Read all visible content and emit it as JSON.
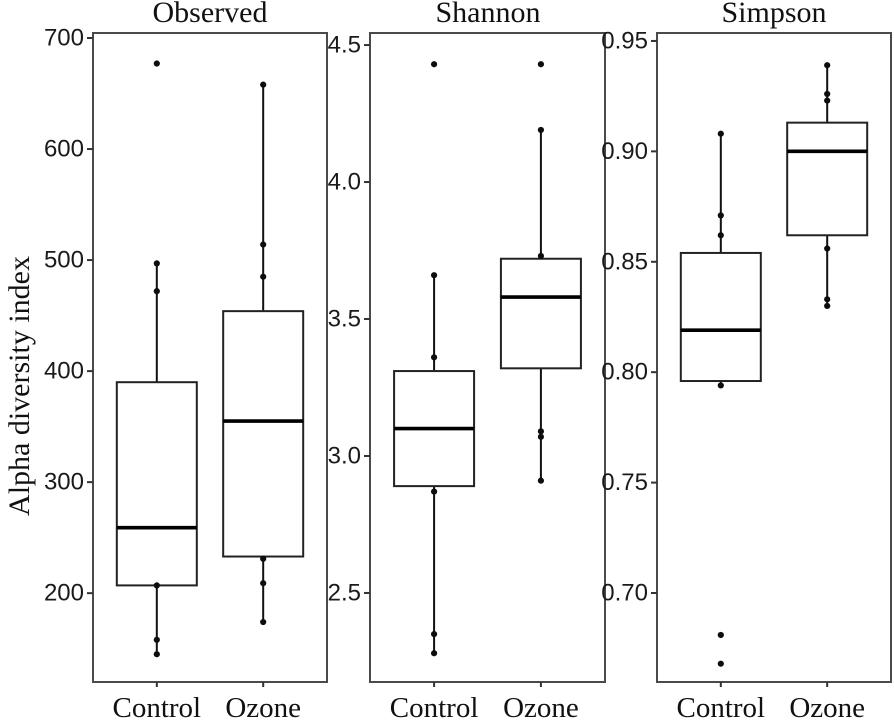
{
  "figure_title": "",
  "chart_data": {
    "type": "boxplot",
    "ylabel": "Alpha diversity index",
    "categories": [
      "Control",
      "Ozone"
    ],
    "colors": {
      "panel_border": "#4a4a4a",
      "box_border": "#222222",
      "median_line": "#000000",
      "whisker": "#111111",
      "point": "#0d0d0d",
      "text": "#111111",
      "background": "#ffffff"
    },
    "panels": [
      {
        "title": "Observed",
        "ylim": [
          120,
          704.5
        ],
        "yticks": [
          200,
          300,
          400,
          500,
          600,
          700
        ],
        "ytick_labels": [
          "200",
          "300",
          "400",
          "500",
          "600",
          "700"
        ],
        "groups": [
          {
            "category": "Control",
            "whisker_low": 145,
            "q1": 207,
            "median": 259,
            "q3": 390,
            "whisker_high": 497,
            "outliers": [
              677
            ],
            "points": [
              145,
              158,
              207,
              472,
              497,
              677
            ]
          },
          {
            "category": "Ozone",
            "whisker_low": 174,
            "q1": 233,
            "median": 355,
            "q3": 454,
            "whisker_high": 658,
            "outliers": [],
            "points": [
              174,
              209,
              231,
              485,
              514,
              658
            ]
          }
        ]
      },
      {
        "title": "Shannon",
        "ylim": [
          2.175,
          4.544
        ],
        "yticks": [
          2.5,
          3.0,
          3.5,
          4.0,
          4.5
        ],
        "ytick_labels": [
          "2.5",
          "3.0",
          "3.5",
          "4.0",
          "4.5"
        ],
        "groups": [
          {
            "category": "Control",
            "whisker_low": 2.28,
            "q1": 2.89,
            "median": 3.1,
            "q3": 3.31,
            "whisker_high": 3.66,
            "outliers": [
              4.43
            ],
            "points": [
              2.28,
              2.35,
              2.87,
              3.36,
              3.66,
              4.43
            ]
          },
          {
            "category": "Ozone",
            "whisker_low": 2.91,
            "q1": 3.32,
            "median": 3.58,
            "q3": 3.72,
            "whisker_high": 4.19,
            "outliers": [
              4.43
            ],
            "points": [
              2.91,
              3.07,
              3.09,
              3.73,
              4.19,
              4.43
            ]
          }
        ]
      },
      {
        "title": "Simpson",
        "ylim": [
          0.6597,
          0.9536
        ],
        "yticks": [
          0.7,
          0.75,
          0.8,
          0.85,
          0.9,
          0.95
        ],
        "ytick_labels": [
          "0.70",
          "0.75",
          "0.80",
          "0.85",
          "0.90",
          "0.95"
        ],
        "groups": [
          {
            "category": "Control",
            "whisker_low": 0.794,
            "q1": 0.796,
            "median": 0.819,
            "q3": 0.854,
            "whisker_high": 0.908,
            "outliers": [
              0.681,
              0.668
            ],
            "points": [
              0.668,
              0.681,
              0.794,
              0.862,
              0.871,
              0.908
            ]
          },
          {
            "category": "Ozone",
            "whisker_low": 0.83,
            "q1": 0.862,
            "median": 0.9,
            "q3": 0.913,
            "whisker_high": 0.939,
            "outliers": [],
            "points": [
              0.83,
              0.833,
              0.856,
              0.923,
              0.926,
              0.939
            ]
          }
        ]
      }
    ]
  }
}
